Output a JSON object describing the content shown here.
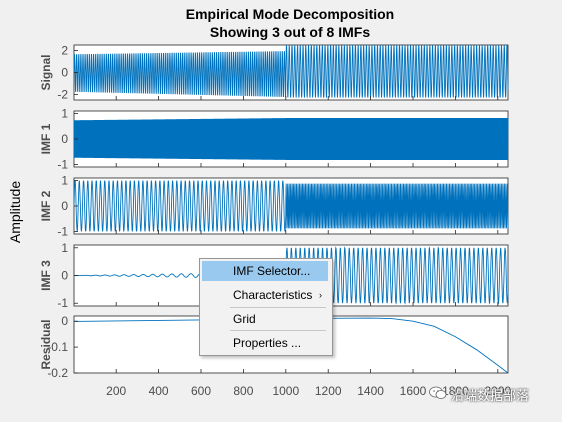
{
  "window": {
    "background": "#f0f0f0"
  },
  "figure": {
    "title_line1": "Empirical Mode Decomposition",
    "title_line2": "Showing 3 out of 8 IMFs",
    "ylabel": "Amplitude",
    "x_ticks": [
      "200",
      "400",
      "600",
      "800",
      "1000",
      "1200",
      "1400",
      "1600",
      "1800",
      "2000"
    ]
  },
  "chart_data": [
    {
      "type": "line",
      "name": "signal",
      "ylabel": "Signal",
      "xlim": [
        1,
        2048
      ],
      "ylim": [
        -2.5,
        2.5
      ],
      "yticks": [
        2,
        0,
        -2
      ],
      "ytick_labels": [
        "2",
        "0",
        "-2"
      ],
      "color": "#0072bd",
      "segments": [
        {
          "x_from": 1,
          "x_to": 1000,
          "period": 10,
          "amp_hi": [
            1.7,
            2.0
          ],
          "amp_lo": [
            -1.8,
            -2.3
          ]
        },
        {
          "x_from": 1000,
          "x_to": 2048,
          "period": 13,
          "amp_hi": [
            2.5,
            2.5
          ],
          "amp_lo": [
            -2.3,
            -2.3
          ]
        }
      ]
    },
    {
      "type": "line",
      "name": "imf1",
      "ylabel": "IMF 1",
      "xlim": [
        1,
        2048
      ],
      "ylim": [
        -1.1,
        1.1
      ],
      "yticks": [
        1,
        0,
        -1
      ],
      "ytick_labels": [
        "1",
        "0",
        "-1"
      ],
      "color": "#0072bd",
      "segments": [
        {
          "x_from": 1,
          "x_to": 1000,
          "period": 3,
          "amplitude": [
            0.85,
            0.95
          ]
        },
        {
          "x_from": 1000,
          "x_to": 2048,
          "period": 3,
          "amplitude": [
            0.95,
            0.95
          ]
        }
      ]
    },
    {
      "type": "line",
      "name": "imf2",
      "ylabel": "IMF 2",
      "xlim": [
        1,
        2048
      ],
      "ylim": [
        -1.1,
        1.1
      ],
      "yticks": [
        1,
        0,
        -1
      ],
      "ytick_labels": [
        "1",
        "0",
        "-1"
      ],
      "color": "#0072bd",
      "segments": [
        {
          "x_from": 1,
          "x_to": 1000,
          "period": 20,
          "amplitude": [
            1.0,
            1.0
          ]
        },
        {
          "x_from": 1000,
          "x_to": 2048,
          "period": 7,
          "amplitude": [
            0.9,
            0.9
          ]
        }
      ]
    },
    {
      "type": "line",
      "name": "imf3",
      "ylabel": "IMF 3",
      "xlim": [
        1,
        2048
      ],
      "ylim": [
        -1.1,
        1.1
      ],
      "yticks": [
        1,
        0,
        -1
      ],
      "ytick_labels": [
        "1",
        "0",
        "-1"
      ],
      "color": "#0072bd",
      "segments": [
        {
          "x_from": 1,
          "x_to": 1000,
          "period": 45,
          "amplitude": [
            0.0,
            0.12
          ]
        },
        {
          "x_from": 1000,
          "x_to": 2048,
          "period": 21,
          "amplitude": [
            1.0,
            1.0
          ]
        }
      ]
    },
    {
      "type": "line",
      "name": "residual",
      "ylabel": "Residual",
      "xlim": [
        1,
        2048
      ],
      "ylim": [
        -0.2,
        0.02
      ],
      "yticks": [
        0,
        -0.1,
        -0.2
      ],
      "ytick_labels": [
        "0",
        "-0.1",
        "-0.2"
      ],
      "color": "#0072bd",
      "points": {
        "x": [
          1,
          200,
          400,
          600,
          800,
          1000,
          1200,
          1400,
          1500,
          1600,
          1700,
          1800,
          1900,
          2000,
          2048
        ],
        "y": [
          -0.001,
          0.001,
          0.003,
          0.005,
          0.007,
          0.009,
          0.011,
          0.012,
          0.01,
          0.0,
          -0.02,
          -0.06,
          -0.11,
          -0.17,
          -0.2
        ]
      }
    }
  ],
  "context_menu": {
    "items": [
      {
        "label": "IMF Selector...",
        "highlighted": true,
        "submenu": false
      },
      {
        "label": "Characteristics",
        "highlighted": false,
        "submenu": true
      },
      {
        "label": "Grid",
        "highlighted": false,
        "submenu": false
      },
      {
        "label": "Properties ...",
        "highlighted": false,
        "submenu": false
      }
    ],
    "submenu_arrow": "›",
    "highlight_color": "#99c9ef"
  },
  "watermark": {
    "text": "沿端数据部落",
    "icon": "wechat-icon"
  }
}
